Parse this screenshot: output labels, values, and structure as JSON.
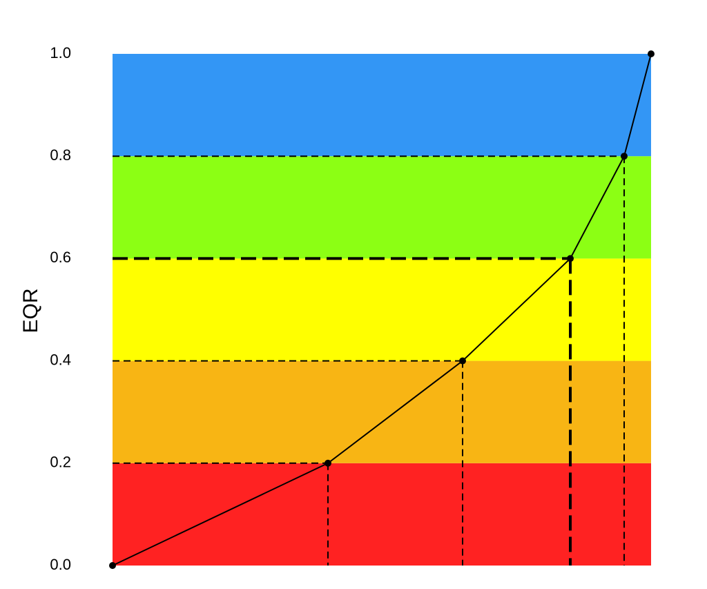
{
  "chart_data": {
    "type": "line",
    "y_label": "EQR",
    "x": [
      0,
      0.4,
      0.65,
      0.85,
      0.95,
      1.0
    ],
    "series": [
      {
        "color": "#000000",
        "values": [
          0,
          0.2,
          0.4,
          0.6,
          0.8,
          1.0
        ]
      }
    ],
    "xlim": [
      0,
      1
    ],
    "ylim": [
      0,
      1
    ],
    "yticks": [
      {
        "value": 0,
        "label": "0.0"
      },
      0.2,
      0.4,
      0.6,
      0.8,
      {
        "value": 1,
        "label": "1.0"
      }
    ],
    "bands": [
      {
        "from": 0,
        "to": 0.2,
        "color": "#ff2222"
      },
      {
        "from": 0.2,
        "to": 0.4,
        "color": "#f8b514"
      },
      {
        "from": 0.4,
        "to": 0.6,
        "color": "#ffff00"
      },
      {
        "from": 0.6,
        "to": 0.8,
        "color": "#8cff14"
      },
      {
        "from": 0.8,
        "to": 1.0,
        "color": "#3396f5"
      }
    ],
    "highlight": 3
  }
}
